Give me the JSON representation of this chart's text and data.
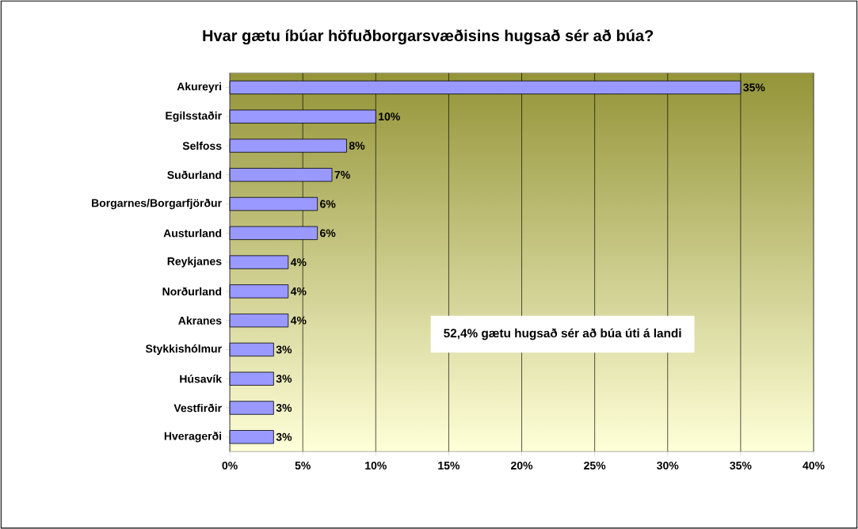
{
  "chart_data": {
    "type": "bar",
    "orientation": "horizontal",
    "title": "Hvar gætu íbúar höfuðborgarsvæðisins hugsað sér að búa?",
    "categories": [
      "Akureyri",
      "Egilsstaðir",
      "Selfoss",
      "Suðurland",
      "Borgarnes/Borgarfjörður",
      "Austurland",
      "Reykjanes",
      "Norðurland",
      "Akranes",
      "Stykkishólmur",
      "Húsavík",
      "Vestfirðir",
      "Hveragerði"
    ],
    "values": [
      35,
      10,
      8,
      7,
      6,
      6,
      4,
      4,
      4,
      3,
      3,
      3,
      3
    ],
    "value_labels": [
      "35%",
      "10%",
      "8%",
      "7%",
      "6%",
      "6%",
      "4%",
      "4%",
      "4%",
      "3%",
      "3%",
      "3%",
      "3%"
    ],
    "color": "#9999ff",
    "xlim": [
      0,
      40
    ],
    "xticks": [
      {
        "value": 0,
        "label": "0%"
      },
      {
        "value": 5,
        "label": "5%"
      },
      {
        "value": 10,
        "label": "10%"
      },
      {
        "value": 15,
        "label": "15%"
      },
      {
        "value": 20,
        "label": "20%"
      },
      {
        "value": 25,
        "label": "25%"
      },
      {
        "value": 30,
        "label": "30%"
      },
      {
        "value": 35,
        "label": "35%"
      },
      {
        "value": 40,
        "label": "40%"
      }
    ],
    "grid": "x",
    "annotations": [
      "52,4% gætu hugsað sér að búa úti á landi"
    ]
  }
}
